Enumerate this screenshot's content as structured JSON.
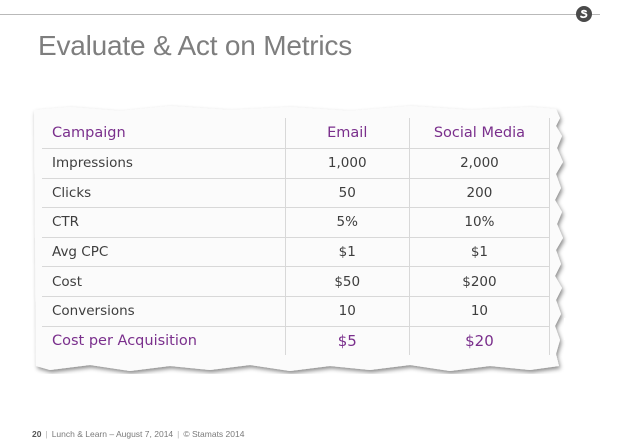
{
  "slide": {
    "title": "Evaluate & Act on Metrics"
  },
  "table": {
    "headers": [
      "Campaign",
      "Email",
      "Social Media"
    ],
    "rows": [
      [
        "Impressions",
        "1,000",
        "2,000"
      ],
      [
        "Clicks",
        "50",
        "200"
      ],
      [
        "CTR",
        "5%",
        "10%"
      ],
      [
        "Avg CPC",
        "$1",
        "$1"
      ],
      [
        "Cost",
        "$50",
        "$200"
      ],
      [
        "Conversions",
        "10",
        "10"
      ],
      [
        "Cost per Acquisition",
        "$5",
        "$20"
      ]
    ]
  },
  "footer": {
    "page": "20",
    "event": "Lunch & Learn – August 7, 2014",
    "copyright": "© Stamats 2014"
  },
  "colors": {
    "title": "#7e7e7e",
    "accent_purple": "#7a2f8c",
    "logo": "#4a4a4a"
  },
  "icons": {
    "logo": "stamats-logo-icon"
  }
}
